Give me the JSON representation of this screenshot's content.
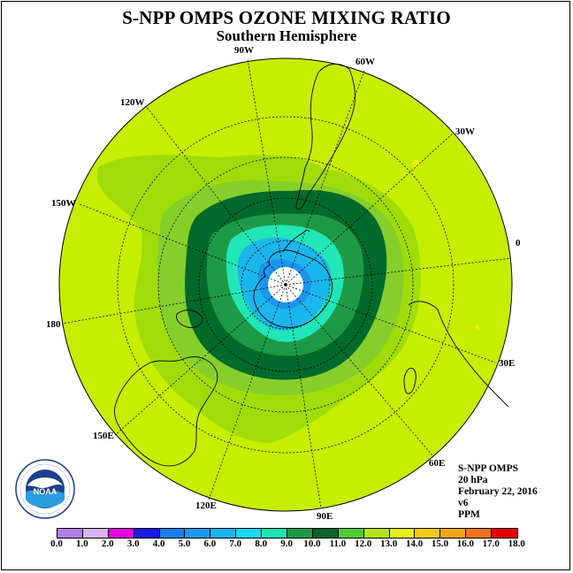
{
  "header": {
    "title": "S-NPP OMPS OZONE MIXING RATIO",
    "subtitle": "Southern Hemisphere"
  },
  "map": {
    "projection": "polar-stereographic",
    "hemisphere": "south",
    "longitude_labels": [
      "90W",
      "60W",
      "30W",
      "0",
      "30E",
      "60E",
      "90E",
      "120E",
      "150E",
      "180",
      "150W",
      "120W"
    ]
  },
  "info": {
    "instrument": "S-NPP OMPS",
    "level": "20 hPa",
    "date": "February 22, 2016",
    "version": "v6",
    "units": "PPM"
  },
  "colorbar": {
    "ticks": [
      "0.0",
      "1.0",
      "2.0",
      "3.0",
      "4.0",
      "5.0",
      "6.0",
      "7.0",
      "8.0",
      "9.0",
      "10.0",
      "11.0",
      "12.0",
      "13.0",
      "14.0",
      "15.0",
      "16.0",
      "17.0",
      "18.0"
    ],
    "colors": [
      "#b27fe6",
      "#d9b3f2",
      "#e600e6",
      "#1a1ae6",
      "#1a7ff2",
      "#1a99f2",
      "#1ab3f2",
      "#1ad9f2",
      "#1ae6b3",
      "#1a9940",
      "#006626",
      "#4dcc33",
      "#b3e61a",
      "#e6f21a",
      "#f2cc1a",
      "#f2a61a",
      "#f2731a",
      "#e60000",
      "#8c4d33"
    ]
  },
  "logo": {
    "text": "NOAA",
    "ring_text": "NATIONAL OCEANIC AND ATMOSPHERIC ADMINISTRATION · U.S. DEPARTMENT OF COMMERCE"
  }
}
